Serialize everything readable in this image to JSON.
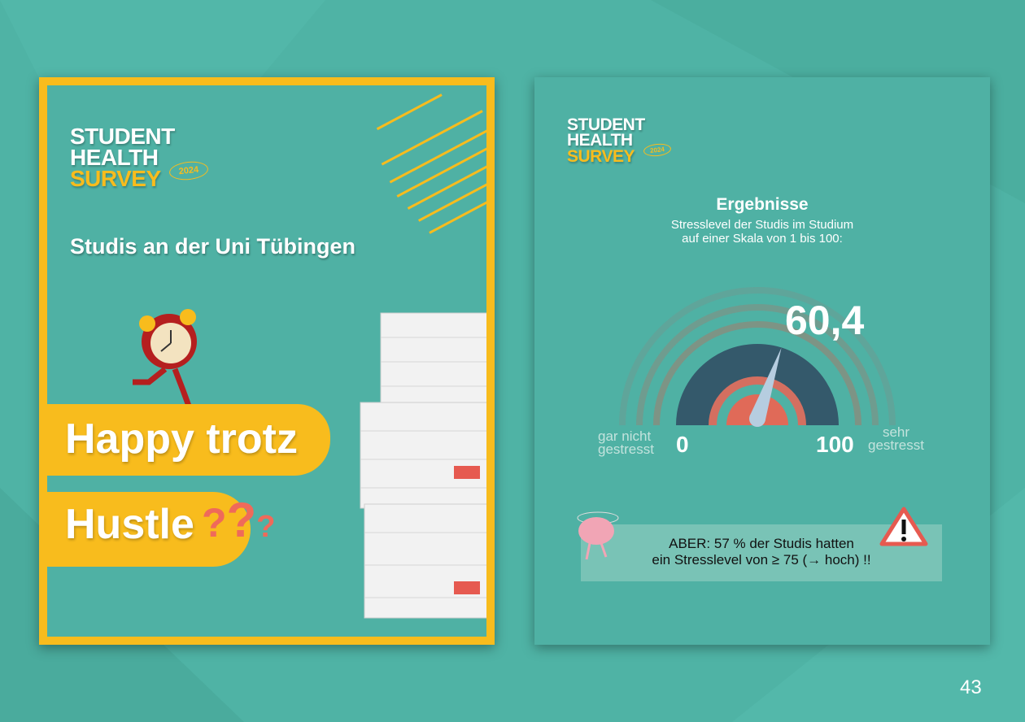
{
  "left_card": {
    "logo": {
      "line1": "STUDENT",
      "line2": "HEALTH",
      "line3": "SURVEY",
      "year": "2024"
    },
    "subtitle": "Studis an der Uni Tübingen",
    "headline_line1": "Happy trotz",
    "headline_line2": "Hustle"
  },
  "right_card": {
    "logo": {
      "line1": "STUDENT",
      "line2": "HEALTH",
      "line3": "SURVEY",
      "year": "2024"
    },
    "title": "Ergebnisse",
    "description_line1": "Stresslevel der Studis im Studium",
    "description_line2": "auf einer Skala von 1 bis 100:",
    "gauge": {
      "value": 60.4,
      "value_label": "60,4",
      "min": 0,
      "max": 100,
      "min_label": "0",
      "max_label": "100",
      "left_caption_line1": "gar nicht",
      "left_caption_line2": "gestresst",
      "right_caption_line1": "sehr",
      "right_caption_line2": "gestresst"
    },
    "callout_line1": "ABER: 57 % der Studis hatten",
    "callout_line2": "ein Stresslevel von ≥ 75 (→ hoch) !!"
  },
  "page_number": "43",
  "colors": {
    "background": "#4fb3a5",
    "accent_yellow": "#f8bc1d",
    "gauge_dark": "#34596b",
    "gauge_red": "#e56a5a",
    "needle": "#b6cde0"
  }
}
